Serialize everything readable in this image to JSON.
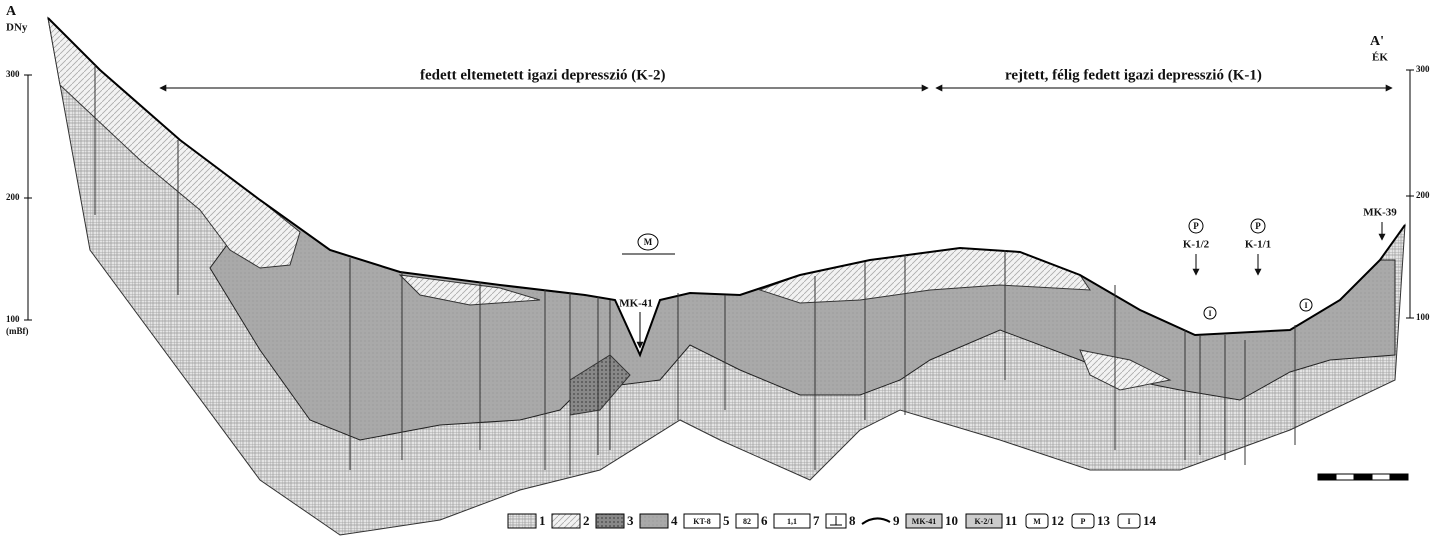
{
  "section": {
    "left_end": {
      "label": "A",
      "direction": "DNy"
    },
    "right_end": {
      "label": "A'",
      "direction": "ÉK"
    }
  },
  "zones": [
    {
      "label": "fedett eltemetett igazi depresszió (K-2)"
    },
    {
      "label": "rejtett, félig fedett igazi depresszió (K-1)"
    }
  ],
  "left_axis": {
    "ticks": [
      "300",
      "200",
      "100"
    ],
    "unit": "(mBf)"
  },
  "right_axis": {
    "ticks": [
      "300",
      "200",
      "100"
    ]
  },
  "wells": [
    {
      "label": "MK-41"
    },
    {
      "label": "MK-39"
    },
    {
      "label": "K-1/2"
    },
    {
      "label": "K-1/1"
    }
  ],
  "legend": [
    {
      "number": "1"
    },
    {
      "number": "2"
    },
    {
      "number": "3"
    },
    {
      "number": "4"
    },
    {
      "number": "5",
      "symbol": "KT-8"
    },
    {
      "number": "6",
      "symbol": "82"
    },
    {
      "number": "7",
      "symbol": "1,1"
    },
    {
      "number": "8"
    },
    {
      "number": "9"
    },
    {
      "number": "10",
      "symbol": "MK-41"
    },
    {
      "number": "11",
      "symbol": "K-2/1"
    },
    {
      "number": "12",
      "symbol": "M"
    },
    {
      "number": "13",
      "symbol": "P"
    },
    {
      "number": "14",
      "symbol": "I"
    }
  ]
}
